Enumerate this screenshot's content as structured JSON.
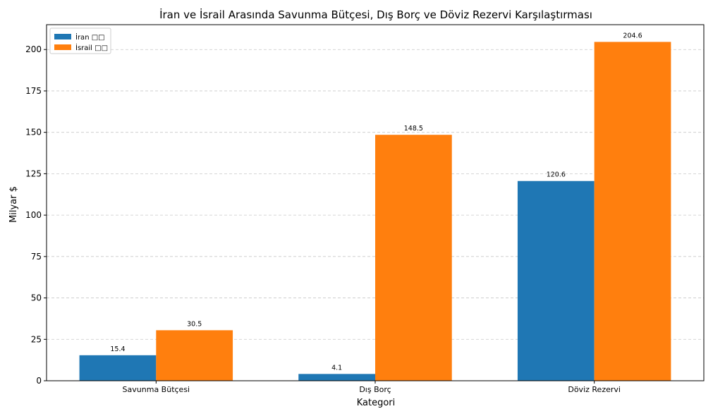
{
  "chart_data": {
    "type": "bar",
    "title": "İran ve İsrail Arasında Savunma Bütçesi, Dış Borç ve Döviz Rezervi Karşılaştırması",
    "xlabel": "Kategori",
    "ylabel": "Milyar $",
    "categories": [
      "Savunma Bütçesi",
      "Dış Borç",
      "Döviz Rezervi"
    ],
    "series": [
      {
        "name": "İran □□",
        "color": "#1f77b4",
        "values": [
          15.4,
          4.1,
          120.6
        ]
      },
      {
        "name": "İsrail □□",
        "color": "#ff7f0e",
        "values": [
          30.5,
          148.5,
          204.6
        ]
      }
    ],
    "ylim": [
      0,
      215
    ],
    "yticks": [
      0,
      25,
      50,
      75,
      100,
      125,
      150,
      175,
      200
    ],
    "grid": "y-dashed",
    "legend": "top-left"
  }
}
